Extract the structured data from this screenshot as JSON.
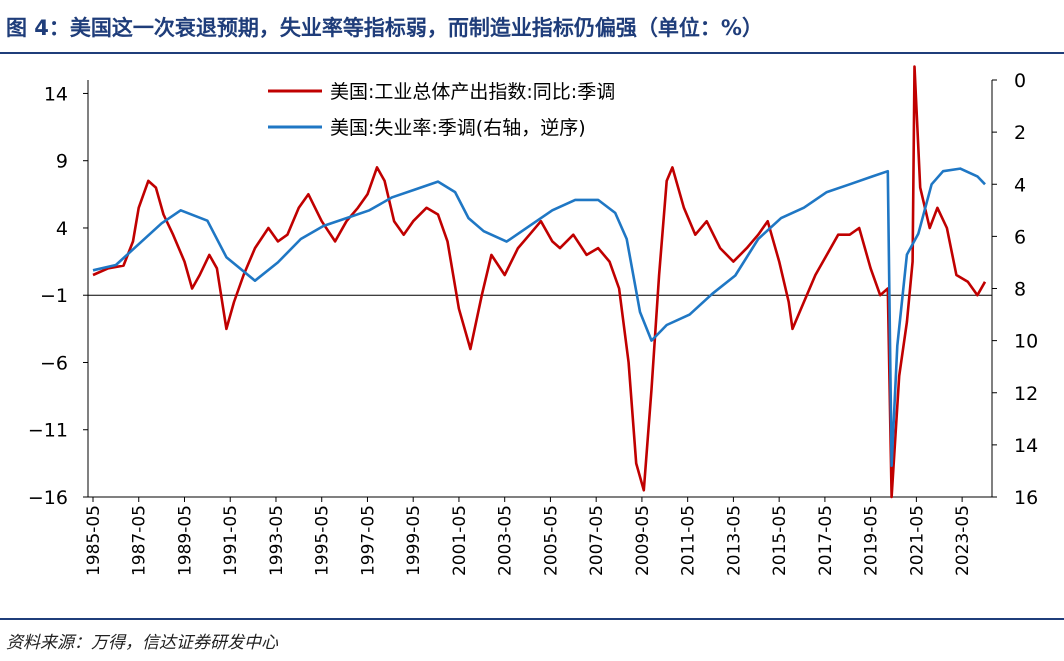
{
  "title": "图 4：美国这一次衰退预期，失业率等指标弱，而制造业指标仍偏强（单位：%）",
  "source": "资料来源：万得，信达证券研发中心",
  "chart_data": {
    "type": "line",
    "x_range": [
      "1985-05",
      "2024-05"
    ],
    "x_ticks": [
      "1985-05",
      "1987-05",
      "1989-05",
      "1991-05",
      "1993-05",
      "1995-05",
      "1997-05",
      "1999-05",
      "2001-05",
      "2003-05",
      "2005-05",
      "2007-05",
      "2009-05",
      "2011-05",
      "2013-05",
      "2015-05",
      "2017-05",
      "2019-05",
      "2021-05",
      "2023-05"
    ],
    "y_left": {
      "ticks": [
        14,
        9,
        4,
        -1,
        -6,
        -11,
        -16
      ],
      "range": [
        -16,
        15
      ]
    },
    "y_right": {
      "ticks": [
        0,
        2,
        4,
        6,
        8,
        10,
        12,
        14,
        16
      ],
      "range": [
        0,
        16
      ],
      "inverted": true
    },
    "zero_line_left": -1,
    "series": [
      {
        "name": "美国:工业总体产出指数:同比:季调",
        "color": "#c00000",
        "axis": "left",
        "points": [
          [
            "1985-05",
            0.5
          ],
          [
            "1986-01",
            1.0
          ],
          [
            "1986-09",
            1.2
          ],
          [
            "1987-02",
            3.0
          ],
          [
            "1987-05",
            5.5
          ],
          [
            "1987-10",
            7.5
          ],
          [
            "1988-02",
            7.0
          ],
          [
            "1988-06",
            5.0
          ],
          [
            "1988-11",
            3.5
          ],
          [
            "1989-05",
            1.5
          ],
          [
            "1989-09",
            -0.5
          ],
          [
            "1990-01",
            0.5
          ],
          [
            "1990-06",
            2.0
          ],
          [
            "1990-10",
            1.0
          ],
          [
            "1991-03",
            -3.5
          ],
          [
            "1991-07",
            -1.5
          ],
          [
            "1991-12",
            0.5
          ],
          [
            "1992-06",
            2.5
          ],
          [
            "1993-01",
            4.0
          ],
          [
            "1993-06",
            3.0
          ],
          [
            "1993-11",
            3.5
          ],
          [
            "1994-05",
            5.5
          ],
          [
            "1994-10",
            6.5
          ],
          [
            "1995-05",
            4.5
          ],
          [
            "1995-12",
            3.0
          ],
          [
            "1996-06",
            4.5
          ],
          [
            "1996-12",
            5.5
          ],
          [
            "1997-05",
            6.5
          ],
          [
            "1997-10",
            8.5
          ],
          [
            "1998-02",
            7.5
          ],
          [
            "1998-07",
            4.5
          ],
          [
            "1998-12",
            3.5
          ],
          [
            "1999-05",
            4.5
          ],
          [
            "1999-12",
            5.5
          ],
          [
            "2000-06",
            5.0
          ],
          [
            "2000-11",
            3.0
          ],
          [
            "2001-05",
            -2.0
          ],
          [
            "2001-11",
            -5.0
          ],
          [
            "2002-05",
            -1.0
          ],
          [
            "2002-10",
            2.0
          ],
          [
            "2003-05",
            0.5
          ],
          [
            "2003-12",
            2.5
          ],
          [
            "2004-06",
            3.5
          ],
          [
            "2004-12",
            4.5
          ],
          [
            "2005-06",
            3.0
          ],
          [
            "2005-10",
            2.5
          ],
          [
            "2006-05",
            3.5
          ],
          [
            "2006-12",
            2.0
          ],
          [
            "2007-06",
            2.5
          ],
          [
            "2007-12",
            1.5
          ],
          [
            "2008-05",
            -0.5
          ],
          [
            "2008-10",
            -6.0
          ],
          [
            "2009-02",
            -13.5
          ],
          [
            "2009-06",
            -15.5
          ],
          [
            "2009-10",
            -8.0
          ],
          [
            "2010-02",
            0.5
          ],
          [
            "2010-06",
            7.5
          ],
          [
            "2010-09",
            8.5
          ],
          [
            "2011-03",
            5.5
          ],
          [
            "2011-09",
            3.5
          ],
          [
            "2012-03",
            4.5
          ],
          [
            "2012-10",
            2.5
          ],
          [
            "2013-05",
            1.5
          ],
          [
            "2013-12",
            2.5
          ],
          [
            "2014-06",
            3.5
          ],
          [
            "2014-11",
            4.5
          ],
          [
            "2015-05",
            1.5
          ],
          [
            "2015-10",
            -1.5
          ],
          [
            "2015-12",
            -3.5
          ],
          [
            "2016-06",
            -1.5
          ],
          [
            "2016-12",
            0.5
          ],
          [
            "2017-06",
            2.0
          ],
          [
            "2017-12",
            3.5
          ],
          [
            "2018-06",
            3.5
          ],
          [
            "2018-11",
            4.0
          ],
          [
            "2019-05",
            1.0
          ],
          [
            "2019-10",
            -1.0
          ],
          [
            "2020-02",
            -0.5
          ],
          [
            "2020-04",
            -16.0
          ],
          [
            "2020-08",
            -7.0
          ],
          [
            "2020-12",
            -3.0
          ],
          [
            "2021-03",
            1.5
          ],
          [
            "2021-04",
            16.0
          ],
          [
            "2021-07",
            7.0
          ],
          [
            "2021-12",
            4.0
          ],
          [
            "2022-04",
            5.5
          ],
          [
            "2022-09",
            4.0
          ],
          [
            "2023-02",
            0.5
          ],
          [
            "2023-08",
            0.0
          ],
          [
            "2024-01",
            -1.0
          ],
          [
            "2024-05",
            0.0
          ]
        ]
      },
      {
        "name": "美国:失业率:季调(右轴，逆序)",
        "color": "#1f77c4",
        "axis": "right",
        "points": [
          [
            "1985-05",
            7.3
          ],
          [
            "1986-05",
            7.1
          ],
          [
            "1987-05",
            6.3
          ],
          [
            "1988-05",
            5.5
          ],
          [
            "1989-03",
            5.0
          ],
          [
            "1990-05",
            5.4
          ],
          [
            "1991-03",
            6.8
          ],
          [
            "1992-06",
            7.7
          ],
          [
            "1993-06",
            7.0
          ],
          [
            "1994-06",
            6.1
          ],
          [
            "1995-06",
            5.6
          ],
          [
            "1996-06",
            5.3
          ],
          [
            "1997-06",
            5.0
          ],
          [
            "1998-06",
            4.5
          ],
          [
            "1999-06",
            4.2
          ],
          [
            "2000-06",
            3.9
          ],
          [
            "2001-03",
            4.3
          ],
          [
            "2001-10",
            5.3
          ],
          [
            "2002-06",
            5.8
          ],
          [
            "2003-06",
            6.2
          ],
          [
            "2004-06",
            5.6
          ],
          [
            "2005-06",
            5.0
          ],
          [
            "2006-06",
            4.6
          ],
          [
            "2007-06",
            4.6
          ],
          [
            "2008-03",
            5.1
          ],
          [
            "2008-09",
            6.1
          ],
          [
            "2009-04",
            8.9
          ],
          [
            "2009-10",
            10.0
          ],
          [
            "2010-06",
            9.4
          ],
          [
            "2011-06",
            9.0
          ],
          [
            "2012-06",
            8.2
          ],
          [
            "2013-06",
            7.5
          ],
          [
            "2014-06",
            6.1
          ],
          [
            "2015-06",
            5.3
          ],
          [
            "2016-06",
            4.9
          ],
          [
            "2017-06",
            4.3
          ],
          [
            "2018-06",
            4.0
          ],
          [
            "2019-06",
            3.7
          ],
          [
            "2020-02",
            3.5
          ],
          [
            "2020-04",
            14.8
          ],
          [
            "2020-07",
            10.2
          ],
          [
            "2020-12",
            6.7
          ],
          [
            "2021-06",
            5.9
          ],
          [
            "2022-01",
            4.0
          ],
          [
            "2022-07",
            3.5
          ],
          [
            "2023-04",
            3.4
          ],
          [
            "2024-01",
            3.7
          ],
          [
            "2024-05",
            4.0
          ]
        ]
      }
    ]
  }
}
